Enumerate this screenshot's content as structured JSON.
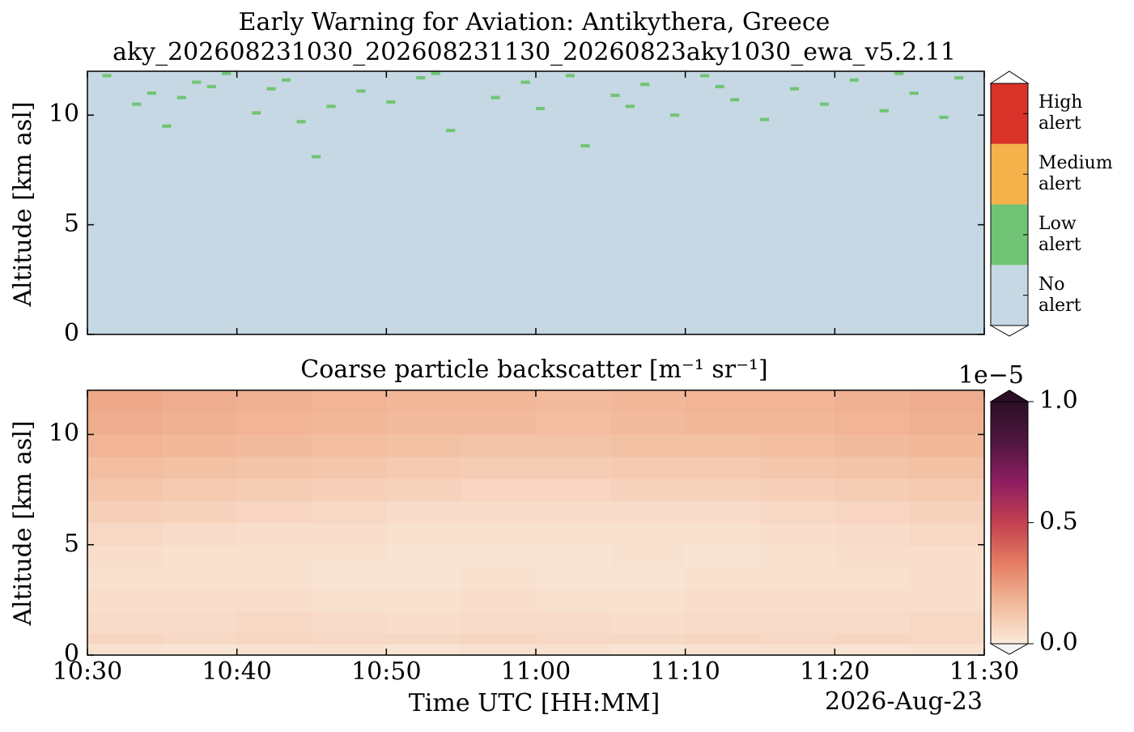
{
  "chart_data": [
    {
      "type": "alert-map",
      "title": "Early Warning for Aviation: Antikythera, Greece",
      "subtitle": "aky_202608231030_202608231130_20260823aky1030_ewa_v5.2.11",
      "ylabel": "Altitude [km asl]",
      "xlim": [
        "10:30",
        "11:30"
      ],
      "xticks": [
        "10:30",
        "10:40",
        "10:50",
        "11:00",
        "11:10",
        "11:20",
        "11:30"
      ],
      "ylim": [
        0,
        12
      ],
      "yticks": [
        0,
        5,
        10
      ],
      "levels": [
        {
          "label": "No alert",
          "color": "#c5d8e3"
        },
        {
          "label": "Low alert",
          "color": "#71c475"
        },
        {
          "label": "Medium alert",
          "color": "#f6b24a"
        },
        {
          "label": "High alert",
          "color": "#d93228"
        }
      ],
      "series": [
        {
          "name": "Low alert",
          "color": "#71c475",
          "x": [
            "10:31",
            "10:33",
            "10:35",
            "10:36",
            "10:38",
            "10:39",
            "10:41",
            "10:43",
            "10:44",
            "10:45",
            "10:46",
            "10:48",
            "10:50",
            "10:52",
            "10:54",
            "10:57",
            "10:59",
            "11:00",
            "11:02",
            "11:03",
            "11:05",
            "11:07",
            "11:09",
            "11:11",
            "11:13",
            "11:15",
            "11:17",
            "11:19",
            "11:21",
            "11:23",
            "11:25",
            "11:27",
            "11:28",
            "10:37",
            "10:53",
            "11:12",
            "10:42",
            "11:06",
            "11:24",
            "10:34"
          ],
          "values": [
            11.8,
            10.5,
            9.5,
            10.8,
            11.3,
            11.9,
            10.1,
            11.6,
            9.7,
            8.1,
            10.4,
            11.1,
            10.6,
            11.7,
            9.3,
            10.8,
            11.5,
            10.3,
            11.8,
            8.6,
            10.9,
            11.4,
            10.0,
            11.8,
            10.7,
            9.8,
            11.2,
            10.5,
            11.6,
            10.2,
            11.0,
            9.9,
            11.7,
            11.5,
            11.9,
            11.3,
            11.2,
            10.4,
            11.9,
            11.0
          ]
        }
      ]
    },
    {
      "type": "heatmap",
      "title": "Coarse particle backscatter [m⁻¹ sr⁻¹]",
      "ylabel": "Altitude [km asl]",
      "xlabel": "Time UTC [HH:MM]",
      "date": "2026-Aug-23",
      "xlim": [
        "10:30",
        "11:30"
      ],
      "xticks": [
        "10:30",
        "10:40",
        "10:50",
        "11:00",
        "11:10",
        "11:20",
        "11:30"
      ],
      "ylim": [
        0,
        12
      ],
      "yticks": [
        0,
        5,
        10
      ],
      "colorbar_offset": "1e−5",
      "clim": [
        0,
        1
      ],
      "cticks": [
        {
          "value": 0,
          "label": "0.0"
        },
        0.5,
        {
          "value": 1,
          "label": "1.0"
        }
      ],
      "colormap": [
        "#faeadb",
        "#f2b99a",
        "#e47c62",
        "#c2404f",
        "#8e1e61",
        "#4f1640",
        "#2b1024"
      ],
      "x": [
        "10:30",
        "10:35",
        "10:40",
        "10:45",
        "10:50",
        "10:55",
        "11:00",
        "11:05",
        "11:10",
        "11:15",
        "11:20",
        "11:25",
        "11:30"
      ],
      "y": [
        0,
        0.5,
        1,
        2,
        3,
        4,
        5,
        6,
        7,
        8,
        9,
        10,
        11,
        12
      ],
      "values": [
        [
          0.03,
          0.02,
          0.03,
          0.03,
          0.02,
          0.03,
          0.03,
          0.02,
          0.03,
          0.03,
          0.02,
          0.03
        ],
        [
          0.07,
          0.06,
          0.07,
          0.06,
          0.06,
          0.07,
          0.06,
          0.06,
          0.07,
          0.06,
          0.07,
          0.06
        ],
        [
          0.05,
          0.05,
          0.06,
          0.05,
          0.04,
          0.05,
          0.05,
          0.04,
          0.05,
          0.05,
          0.05,
          0.06
        ],
        [
          0.04,
          0.04,
          0.04,
          0.03,
          0.03,
          0.04,
          0.03,
          0.03,
          0.04,
          0.04,
          0.04,
          0.04
        ],
        [
          0.03,
          0.03,
          0.03,
          0.02,
          0.02,
          0.03,
          0.02,
          0.02,
          0.03,
          0.03,
          0.03,
          0.04
        ],
        [
          0.04,
          0.03,
          0.03,
          0.03,
          0.02,
          0.02,
          0.02,
          0.03,
          0.02,
          0.03,
          0.04,
          0.04
        ],
        [
          0.06,
          0.05,
          0.04,
          0.04,
          0.03,
          0.03,
          0.03,
          0.03,
          0.03,
          0.04,
          0.05,
          0.06
        ],
        [
          0.09,
          0.08,
          0.07,
          0.06,
          0.05,
          0.05,
          0.05,
          0.05,
          0.05,
          0.06,
          0.07,
          0.08
        ],
        [
          0.12,
          0.11,
          0.1,
          0.09,
          0.08,
          0.07,
          0.07,
          0.08,
          0.08,
          0.09,
          0.1,
          0.11
        ],
        [
          0.15,
          0.14,
          0.13,
          0.12,
          0.11,
          0.1,
          0.1,
          0.11,
          0.11,
          0.12,
          0.13,
          0.14
        ],
        [
          0.18,
          0.17,
          0.16,
          0.15,
          0.14,
          0.13,
          0.13,
          0.14,
          0.14,
          0.15,
          0.16,
          0.17
        ],
        [
          0.2,
          0.19,
          0.18,
          0.17,
          0.16,
          0.16,
          0.15,
          0.16,
          0.17,
          0.17,
          0.18,
          0.19
        ],
        [
          0.21,
          0.2,
          0.19,
          0.18,
          0.17,
          0.17,
          0.16,
          0.17,
          0.18,
          0.18,
          0.19,
          0.2
        ]
      ]
    }
  ]
}
